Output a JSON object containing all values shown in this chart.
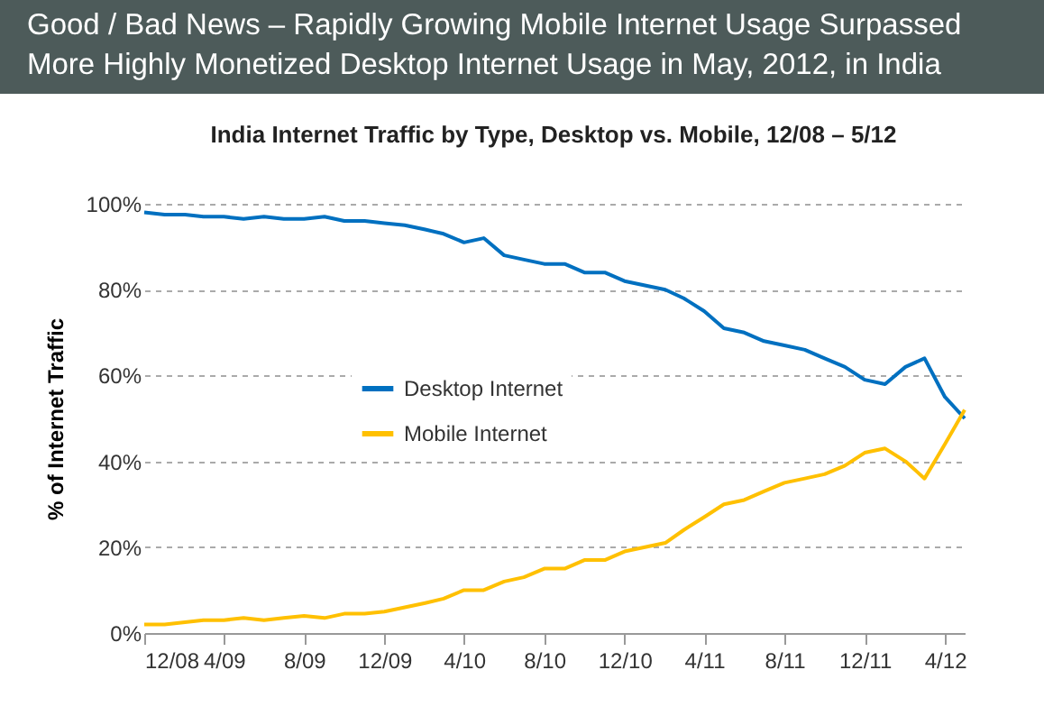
{
  "chart_data": {
    "type": "line",
    "title": "Good / Bad News – Rapidly Growing Mobile Internet Usage Surpassed More Highly Monetized Desktop Internet Usage in May, 2012, in India",
    "subtitle": "India Internet Traffic by Type, Desktop vs. Mobile, 12/08 – 5/12",
    "ylabel": "% of Internet Traffic",
    "x": [
      "2008-12",
      "2009-01",
      "2009-02",
      "2009-03",
      "2009-04",
      "2009-05",
      "2009-06",
      "2009-07",
      "2009-08",
      "2009-09",
      "2009-10",
      "2009-11",
      "2009-12",
      "2010-01",
      "2010-02",
      "2010-03",
      "2010-04",
      "2010-05",
      "2010-06",
      "2010-07",
      "2010-08",
      "2010-09",
      "2010-10",
      "2010-11",
      "2010-12",
      "2011-01",
      "2011-02",
      "2011-03",
      "2011-04",
      "2011-05",
      "2011-06",
      "2011-07",
      "2011-08",
      "2011-09",
      "2011-10",
      "2011-11",
      "2011-12",
      "2012-01",
      "2012-02",
      "2012-03",
      "2012-04",
      "2012-05"
    ],
    "series": [
      {
        "name": "Desktop Internet",
        "color": "#0070c0",
        "values": [
          98,
          97.5,
          97.5,
          97,
          97,
          96.5,
          97,
          96.5,
          96.5,
          97,
          96,
          96,
          95.5,
          95,
          94,
          93,
          91,
          92,
          88,
          87,
          86,
          86,
          84,
          84,
          82,
          81,
          80,
          78,
          75,
          71,
          70,
          68,
          67,
          66,
          64,
          62,
          59,
          58,
          62,
          64,
          55,
          50
        ]
      },
      {
        "name": "Mobile Internet",
        "color": "#ffc000",
        "values": [
          2,
          2,
          2.5,
          3,
          3,
          3.5,
          3,
          3.5,
          4,
          3.5,
          4.5,
          4.5,
          5,
          6,
          7,
          8,
          10,
          10,
          12,
          13,
          15,
          15,
          17,
          17,
          19,
          20,
          21,
          24,
          27,
          30,
          31,
          33,
          35,
          36,
          37,
          39,
          42,
          43,
          40,
          36,
          44,
          52
        ]
      }
    ],
    "xlim": [
      "2008-12",
      "2012-05"
    ],
    "xticks": [
      {
        "value": "2008-12",
        "label": "12/08"
      },
      {
        "value": "2009-04",
        "label": "4/09"
      },
      {
        "value": "2009-08",
        "label": "8/09"
      },
      {
        "value": "2009-12",
        "label": "12/09"
      },
      {
        "value": "2010-04",
        "label": "4/10"
      },
      {
        "value": "2010-08",
        "label": "8/10"
      },
      {
        "value": "2010-12",
        "label": "12/10"
      },
      {
        "value": "2011-04",
        "label": "4/11"
      },
      {
        "value": "2011-08",
        "label": "8/11"
      },
      {
        "value": "2011-12",
        "label": "12/11"
      },
      {
        "value": "2012-04",
        "label": "4/12"
      }
    ],
    "ylim": [
      0,
      100
    ],
    "yticks": [
      {
        "value": 0,
        "label": "0%"
      },
      {
        "value": 20,
        "label": "20%"
      },
      {
        "value": 40,
        "label": "40%"
      },
      {
        "value": 60,
        "label": "60%"
      },
      {
        "value": 80,
        "label": "80%"
      },
      {
        "value": 100,
        "label": "100%"
      }
    ],
    "grid": "y",
    "legend": "center",
    "line_style": "solid",
    "marker": "none"
  }
}
